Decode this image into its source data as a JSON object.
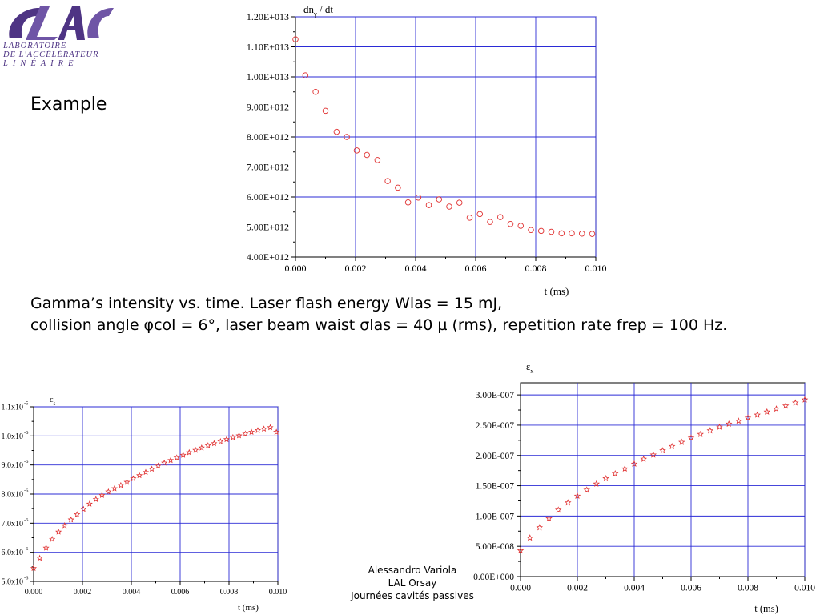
{
  "logo": {
    "name": "CLAC logo",
    "lines": [
      "LABORATOIRE",
      "DE L'ACCÉLÉRATEUR",
      "LINÉAIRE"
    ],
    "color": "#4e3484"
  },
  "example_label": "Example",
  "caption": {
    "line1": "Gamma’s intensity vs. time. Laser flash energy Wlas = 15 mJ,",
    "line2": "collision angle φcol = 6°, laser beam waist σlas = 40 µ (rms), repetition rate frep = 100 Hz."
  },
  "author": {
    "name": "Alessandro Variola",
    "lab": "LAL Orsay",
    "event": "Journées cavités passives"
  },
  "colors": {
    "grid": "#2b2bd6",
    "marker": "#e03030",
    "axis": "#000000"
  },
  "chart_data": [
    {
      "type": "scatter",
      "marker": "circle",
      "ylabel_main": "dn",
      "ylabel_sub": "γ",
      "ylabel_rest": " / dt",
      "xlabel": "t (ms)",
      "xlim": [
        0,
        0.01
      ],
      "ylim": [
        4000000000000.0,
        12000000000000.0
      ],
      "xticks": [
        0,
        0.002,
        0.004,
        0.006,
        0.008,
        0.01
      ],
      "xtick_labels": [
        "0.000",
        "0.002",
        "0.004",
        "0.006",
        "0.008",
        "0.010"
      ],
      "yticks": [
        4000000000000.0,
        5000000000000.0,
        6000000000000.0,
        7000000000000.0,
        8000000000000.0,
        9000000000000.0,
        10000000000000.0,
        11000000000000.0,
        12000000000000.0
      ],
      "ytick_labels": [
        "4.00E+012",
        "5.00E+012",
        "6.00E+012",
        "7.00E+012",
        "8.00E+012",
        "9.00E+012",
        "1.00E+013",
        "1.10E+013",
        "1.20E+013"
      ],
      "grid": true,
      "x": [
        0,
        0.00033,
        0.00067,
        0.001,
        0.00137,
        0.00171,
        0.00204,
        0.00238,
        0.00273,
        0.00307,
        0.00341,
        0.00375,
        0.00409,
        0.00444,
        0.00478,
        0.00512,
        0.00546,
        0.0058,
        0.00614,
        0.00648,
        0.00682,
        0.00716,
        0.0075,
        0.00784,
        0.00818,
        0.00852,
        0.00886,
        0.0092,
        0.00954,
        0.00988
      ],
      "y": [
        11250000000000.0,
        10050000000000.0,
        9500000000000.0,
        8870000000000.0,
        8170000000000.0,
        8000000000000.0,
        7550000000000.0,
        7400000000000.0,
        7230000000000.0,
        6530000000000.0,
        6310000000000.0,
        5820000000000.0,
        5980000000000.0,
        5730000000000.0,
        5920000000000.0,
        5680000000000.0,
        5810000000000.0,
        5310000000000.0,
        5430000000000.0,
        5170000000000.0,
        5330000000000.0,
        5100000000000.0,
        5040000000000.0,
        4900000000000.0,
        4870000000000.0,
        4840000000000.0,
        4790000000000.0,
        4790000000000.0,
        4780000000000.0,
        4770000000000.0
      ]
    },
    {
      "type": "scatter",
      "marker": "star",
      "ylabel_main": "ε",
      "ylabel_sub": "s",
      "ylabel_rest": "",
      "xlabel": "t (ms)",
      "xlim": [
        0,
        0.01
      ],
      "ylim": [
        5e-06,
        1.1e-05
      ],
      "xticks": [
        0,
        0.002,
        0.004,
        0.006,
        0.008,
        0.01
      ],
      "xtick_labels": [
        "0.000",
        "0.002",
        "0.004",
        "0.006",
        "0.008",
        "0.010"
      ],
      "yticks": [
        5e-06,
        6e-06,
        7e-06,
        8e-06,
        9e-06,
        1e-05,
        1.1e-05
      ],
      "ytick_mantissa": [
        "5.0x10",
        "6.0x10",
        "7.0x10",
        "8.0x10",
        "9.0x10",
        "1.0x10",
        "1.1x10"
      ],
      "ytick_exponent": [
        "-6",
        "-6",
        "-6",
        "-6",
        "-6",
        "-6",
        "-5"
      ],
      "grid": true,
      "x": [
        0,
        0.00025,
        0.00051,
        0.00076,
        0.00102,
        0.00127,
        0.00153,
        0.00178,
        0.00204,
        0.00229,
        0.00255,
        0.0028,
        0.00306,
        0.00331,
        0.00357,
        0.00382,
        0.00408,
        0.00433,
        0.00459,
        0.00484,
        0.0051,
        0.00535,
        0.00561,
        0.00586,
        0.00612,
        0.00637,
        0.00663,
        0.00688,
        0.00714,
        0.00739,
        0.00765,
        0.0079,
        0.00816,
        0.00841,
        0.00867,
        0.00892,
        0.00918,
        0.00943,
        0.00969,
        0.00994
      ],
      "y": [
        5.45e-06,
        5.8e-06,
        6.15e-06,
        6.45e-06,
        6.7e-06,
        6.92e-06,
        7.12e-06,
        7.3e-06,
        7.48e-06,
        7.66e-06,
        7.82e-06,
        7.96e-06,
        8.08e-06,
        8.19e-06,
        8.3e-06,
        8.41e-06,
        8.53e-06,
        8.64e-06,
        8.75e-06,
        8.86e-06,
        8.97e-06,
        9.07e-06,
        9.16e-06,
        9.25e-06,
        9.34e-06,
        9.43e-06,
        9.51e-06,
        9.59e-06,
        9.67e-06,
        9.74e-06,
        9.81e-06,
        9.88e-06,
        9.95e-06,
        1.001e-05,
        1.007e-05,
        1.013e-05,
        1.019e-05,
        1.024e-05,
        1.029e-05,
        1.013e-05
      ]
    },
    {
      "type": "scatter",
      "marker": "star",
      "ylabel_main": "ε",
      "ylabel_sub": "x",
      "ylabel_rest": "",
      "xlabel": "t (ms)",
      "xlim": [
        0,
        0.01
      ],
      "ylim": [
        0,
        3.2e-07
      ],
      "xticks": [
        0,
        0.002,
        0.004,
        0.006,
        0.008,
        0.01
      ],
      "xtick_labels": [
        "0.000",
        "0.002",
        "0.004",
        "0.006",
        "0.008",
        "0.010"
      ],
      "yticks": [
        0,
        5e-08,
        1e-07,
        1.5e-07,
        2e-07,
        2.5e-07,
        3e-07
      ],
      "ytick_labels": [
        "0.00E+000",
        "5.00E-008",
        "1.00E-007",
        "1.50E-007",
        "2.00E-007",
        "2.50E-007",
        "3.00E-007"
      ],
      "grid": true,
      "x": [
        0,
        0.00033,
        0.00067,
        0.001,
        0.00133,
        0.00167,
        0.002,
        0.00233,
        0.00267,
        0.003,
        0.00333,
        0.00367,
        0.004,
        0.00433,
        0.00467,
        0.005,
        0.00533,
        0.00567,
        0.006,
        0.00633,
        0.00667,
        0.007,
        0.00733,
        0.00767,
        0.008,
        0.00833,
        0.00867,
        0.009,
        0.00933,
        0.00967,
        0.01
      ],
      "y": [
        4.3e-08,
        6.4e-08,
        8.1e-08,
        9.6e-08,
        1.1e-07,
        1.22e-07,
        1.33e-07,
        1.43e-07,
        1.53e-07,
        1.62e-07,
        1.7e-07,
        1.78e-07,
        1.86e-07,
        1.94e-07,
        2.01e-07,
        2.08e-07,
        2.15e-07,
        2.22e-07,
        2.29e-07,
        2.35e-07,
        2.41e-07,
        2.47e-07,
        2.52e-07,
        2.57e-07,
        2.62e-07,
        2.67e-07,
        2.72e-07,
        2.77e-07,
        2.82e-07,
        2.87e-07,
        2.92e-07
      ]
    }
  ]
}
